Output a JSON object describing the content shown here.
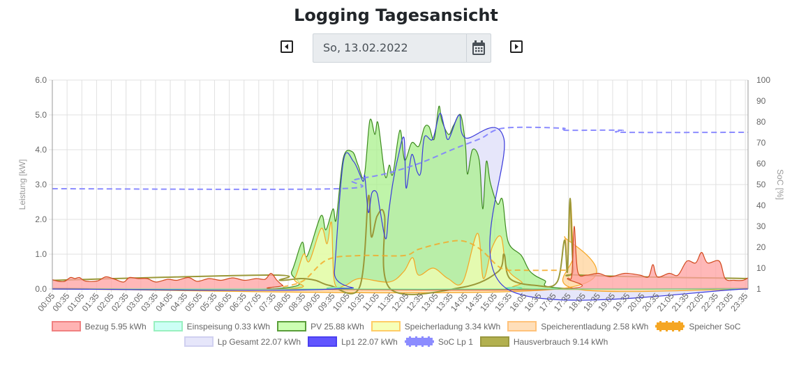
{
  "header": {
    "title": "Logging Tagesansicht",
    "date_value": "So, 13.02.2022"
  },
  "chart_data": {
    "type": "area",
    "ylabel_left": "Leistung [kW]",
    "ylabel_right": "SoC [%]",
    "ylim_left": [
      0,
      6
    ],
    "ylim_right": [
      0,
      100
    ],
    "left_ticks": [
      "0.0",
      "1.0",
      "2.0",
      "3.0",
      "4.0",
      "5.0",
      "6.0"
    ],
    "right_ticks": [
      "1",
      "10",
      "20",
      "30",
      "40",
      "50",
      "60",
      "70",
      "80",
      "90",
      "100"
    ],
    "x_ticks": [
      "00:05",
      "00:35",
      "01:05",
      "01:35",
      "02:05",
      "02:35",
      "03:05",
      "03:35",
      "04:05",
      "04:35",
      "05:05",
      "05:35",
      "06:05",
      "06:35",
      "07:05",
      "07:35",
      "08:05",
      "08:35",
      "09:05",
      "09:35",
      "10:05",
      "10:35",
      "11:05",
      "11:35",
      "12:05",
      "12:35",
      "13:05",
      "13:35",
      "14:05",
      "14:35",
      "15:05",
      "15:35",
      "16:05",
      "16:35",
      "17:05",
      "17:35",
      "18:05",
      "18:35",
      "19:05",
      "19:35",
      "20:05",
      "20:35",
      "21:05",
      "21:35",
      "22:05",
      "22:35",
      "23:05",
      "23:35"
    ],
    "x_unit": "hours",
    "grid": true,
    "legend_placement": "bottom",
    "series": [
      {
        "key": "lpgesamt",
        "name": "Lp Gesamt 22.07 kWh",
        "axis": "left",
        "fill": "#e6e6fa",
        "line": "#ccccee",
        "style": "area",
        "points": [
          [
            0.08,
            0
          ],
          [
            9.58,
            0
          ],
          [
            9.65,
            0.5
          ],
          [
            9.95,
            3.66
          ],
          [
            10.3,
            3.66
          ],
          [
            10.61,
            3.1
          ],
          [
            10.68,
            3.24
          ],
          [
            10.8,
            2.2
          ],
          [
            10.92,
            2.76
          ],
          [
            11.09,
            2.76
          ],
          [
            11.2,
            2.24
          ],
          [
            11.39,
            1.44
          ],
          [
            11.49,
            2.2
          ],
          [
            11.63,
            3.04
          ],
          [
            11.8,
            3.76
          ],
          [
            12.01,
            4.34
          ],
          [
            12.08,
            2.9
          ],
          [
            12.27,
            3.86
          ],
          [
            12.46,
            3.36
          ],
          [
            12.58,
            3.36
          ],
          [
            12.7,
            4.36
          ],
          [
            12.98,
            4.3
          ],
          [
            13.22,
            5.04
          ],
          [
            13.38,
            4.64
          ],
          [
            13.52,
            4.3
          ],
          [
            13.88,
            5.0
          ],
          [
            14.09,
            4.34
          ],
          [
            15.39,
            4.34
          ],
          [
            15.51,
            0
          ],
          [
            23.67,
            0
          ]
        ]
      },
      {
        "key": "pv",
        "name": "PV 25.88 kWh",
        "axis": "left",
        "fill": "rgba(170,240,140,0.75)",
        "line": "#3c8a1e",
        "style": "area",
        "points": [
          [
            0.08,
            0.02
          ],
          [
            7.77,
            0.02
          ],
          [
            8.2,
            0.5
          ],
          [
            8.55,
            1.34
          ],
          [
            8.72,
            0.94
          ],
          [
            9.19,
            2.1
          ],
          [
            9.36,
            1.7
          ],
          [
            9.6,
            2.3
          ],
          [
            9.71,
            2.0
          ],
          [
            9.95,
            3.76
          ],
          [
            10.26,
            3.94
          ],
          [
            10.45,
            3.56
          ],
          [
            10.66,
            3.24
          ],
          [
            10.85,
            4.84
          ],
          [
            11.02,
            4.44
          ],
          [
            11.13,
            4.76
          ],
          [
            11.37,
            3.24
          ],
          [
            11.51,
            3.56
          ],
          [
            11.63,
            3.3
          ],
          [
            11.87,
            4.56
          ],
          [
            12.03,
            3.7
          ],
          [
            12.27,
            4.2
          ],
          [
            12.51,
            4.1
          ],
          [
            12.7,
            4.64
          ],
          [
            12.86,
            4.66
          ],
          [
            13.03,
            4.3
          ],
          [
            13.19,
            5.24
          ],
          [
            13.29,
            4.84
          ],
          [
            13.52,
            4.44
          ],
          [
            13.69,
            4.7
          ],
          [
            13.93,
            5.0
          ],
          [
            14.09,
            4.16
          ],
          [
            14.16,
            3.3
          ],
          [
            14.33,
            4.0
          ],
          [
            14.56,
            3.7
          ],
          [
            14.68,
            2.3
          ],
          [
            14.8,
            3.66
          ],
          [
            14.94,
            3.04
          ],
          [
            15.18,
            2.44
          ],
          [
            15.35,
            2.56
          ],
          [
            15.54,
            1.36
          ],
          [
            15.99,
            0.96
          ],
          [
            16.29,
            0.5
          ],
          [
            16.77,
            0.25
          ],
          [
            17.48,
            0.02
          ],
          [
            23.67,
            0.02
          ]
        ]
      },
      {
        "key": "laden",
        "name": "Speicherladung 3.34 kWh",
        "axis": "left",
        "fill": "rgba(246,255,179,0.7)",
        "line": "#f5a623",
        "style": "area",
        "points": [
          [
            0.08,
            0
          ],
          [
            7.9,
            0
          ],
          [
            8.3,
            0.3
          ],
          [
            8.6,
            1.0
          ],
          [
            8.8,
            0.8
          ],
          [
            9.2,
            1.74
          ],
          [
            9.4,
            1.3
          ],
          [
            9.55,
            1.9
          ],
          [
            9.65,
            0.2
          ],
          [
            10,
            0.1
          ],
          [
            10.5,
            0.3
          ],
          [
            11.5,
            0.2
          ],
          [
            12,
            0.5
          ],
          [
            12.3,
            0.9
          ],
          [
            12.5,
            0.4
          ],
          [
            13,
            0.6
          ],
          [
            13.5,
            0.3
          ],
          [
            14,
            0.2
          ],
          [
            14.5,
            1.6
          ],
          [
            14.7,
            0.3
          ],
          [
            15,
            1.2
          ],
          [
            15.3,
            1.5
          ],
          [
            15.5,
            0.6
          ],
          [
            16,
            0.2
          ],
          [
            16.3,
            0
          ],
          [
            23.67,
            0
          ]
        ]
      },
      {
        "key": "entladen",
        "name": "Speicherentladung 2.58 kWh",
        "axis": "left",
        "fill": "rgba(255,214,160,0.8)",
        "line": "#f5a623",
        "style": "area",
        "points": [
          [
            0.08,
            0
          ],
          [
            17.2,
            0
          ],
          [
            17.45,
            1.5
          ],
          [
            17.55,
            0.5
          ],
          [
            17.65,
            2.55
          ],
          [
            17.75,
            1.0
          ],
          [
            17.85,
            0
          ],
          [
            23.67,
            0
          ]
        ]
      },
      {
        "key": "haus",
        "name": "Hausverbrauch 9.14 kWh",
        "axis": "left",
        "fill": "none",
        "line": "#9a9838",
        "style": "line",
        "points": [
          [
            0.08,
            0.25
          ],
          [
            7.5,
            0.4
          ],
          [
            7.8,
            0.25
          ],
          [
            8.5,
            0.3
          ],
          [
            9.0,
            0.25
          ],
          [
            9.5,
            0.1
          ],
          [
            10.5,
            0.05
          ],
          [
            10.8,
            2.66
          ],
          [
            10.9,
            1.5
          ],
          [
            11.1,
            2.1
          ],
          [
            11.35,
            2.1
          ],
          [
            11.55,
            0
          ],
          [
            14,
            0.05
          ],
          [
            15.2,
            0.5
          ],
          [
            15.4,
            1.0
          ],
          [
            15.6,
            0.3
          ],
          [
            16.5,
            0.1
          ],
          [
            17.2,
            0.2
          ],
          [
            17.45,
            1.4
          ],
          [
            17.55,
            0.5
          ],
          [
            17.64,
            2.6
          ],
          [
            17.75,
            0.6
          ],
          [
            18,
            0.4
          ],
          [
            23.67,
            0.3
          ]
        ]
      },
      {
        "key": "bezug",
        "name": "Bezug 5.95 kWh",
        "axis": "left",
        "fill": "rgba(255,160,160,0.75)",
        "line": "#d24a1e",
        "style": "area",
        "points": [
          [
            0.08,
            0.27
          ],
          [
            0.3,
            0.22
          ],
          [
            0.5,
            0.22
          ],
          [
            0.7,
            0.33
          ],
          [
            0.85,
            0.3
          ],
          [
            1.0,
            0.33
          ],
          [
            1.2,
            0.23
          ],
          [
            1.6,
            0.23
          ],
          [
            1.9,
            0.35
          ],
          [
            2.2,
            0.28
          ],
          [
            2.5,
            0.2
          ],
          [
            2.7,
            0.33
          ],
          [
            3.0,
            0.3
          ],
          [
            3.3,
            0.3
          ],
          [
            3.6,
            0.2
          ],
          [
            4.0,
            0.28
          ],
          [
            4.3,
            0.25
          ],
          [
            4.7,
            0.33
          ],
          [
            5.0,
            0.22
          ],
          [
            5.4,
            0.3
          ],
          [
            5.8,
            0.25
          ],
          [
            6.2,
            0.32
          ],
          [
            6.6,
            0.25
          ],
          [
            7.0,
            0.3
          ],
          [
            7.3,
            0.28
          ],
          [
            7.5,
            0.45
          ],
          [
            7.7,
            0.25
          ],
          [
            7.9,
            0.1
          ],
          [
            8.1,
            0
          ],
          [
            17.3,
            0
          ],
          [
            17.55,
            0.3
          ],
          [
            17.7,
            0.4
          ],
          [
            17.78,
            1.8
          ],
          [
            17.9,
            0.5
          ],
          [
            18.2,
            0.4
          ],
          [
            18.6,
            0.45
          ],
          [
            19.0,
            0.35
          ],
          [
            19.5,
            0.45
          ],
          [
            20.0,
            0.4
          ],
          [
            20.3,
            0.35
          ],
          [
            20.45,
            0.7
          ],
          [
            20.6,
            0.35
          ],
          [
            21.0,
            0.45
          ],
          [
            21.3,
            0.4
          ],
          [
            21.6,
            0.8
          ],
          [
            21.9,
            0.75
          ],
          [
            22.1,
            1.05
          ],
          [
            22.3,
            0.75
          ],
          [
            22.7,
            0.8
          ],
          [
            22.9,
            0.3
          ],
          [
            23.2,
            0.25
          ],
          [
            23.5,
            0.25
          ],
          [
            23.67,
            0.32
          ]
        ]
      },
      {
        "key": "einspeisung",
        "name": "Einspeisung 0.33 kWh",
        "axis": "left",
        "fill": "rgba(204,255,240,0.8)",
        "line": "#66e0a0",
        "style": "area",
        "points": [
          [
            0.08,
            0
          ],
          [
            9.4,
            0
          ],
          [
            9.6,
            0.05
          ],
          [
            9.9,
            0
          ],
          [
            15.5,
            0
          ],
          [
            15.8,
            0.06
          ],
          [
            16.1,
            0
          ],
          [
            23.67,
            0
          ]
        ]
      },
      {
        "key": "lp1",
        "name": "Lp1 22.07 kWh",
        "axis": "left",
        "fill": "none",
        "line": "#3b3bdc",
        "style": "line",
        "points": [
          [
            0.08,
            0
          ],
          [
            9.58,
            0
          ],
          [
            9.65,
            0.5
          ],
          [
            9.95,
            3.66
          ],
          [
            10.3,
            3.66
          ],
          [
            10.61,
            3.1
          ],
          [
            10.68,
            3.24
          ],
          [
            10.8,
            2.2
          ],
          [
            10.92,
            2.76
          ],
          [
            11.09,
            2.76
          ],
          [
            11.2,
            2.24
          ],
          [
            11.39,
            1.44
          ],
          [
            11.49,
            2.2
          ],
          [
            11.63,
            3.04
          ],
          [
            11.8,
            3.76
          ],
          [
            12.01,
            4.34
          ],
          [
            12.08,
            2.9
          ],
          [
            12.27,
            3.86
          ],
          [
            12.46,
            3.36
          ],
          [
            12.58,
            3.36
          ],
          [
            12.7,
            4.36
          ],
          [
            12.98,
            4.3
          ],
          [
            13.22,
            5.04
          ],
          [
            13.38,
            4.64
          ],
          [
            13.52,
            4.3
          ],
          [
            13.88,
            5.0
          ],
          [
            14.09,
            4.34
          ],
          [
            15.39,
            4.34
          ],
          [
            15.51,
            0
          ],
          [
            23.67,
            0
          ]
        ]
      },
      {
        "key": "speichersoc",
        "name": "Speicher SoC",
        "axis": "right",
        "fill": "none",
        "line": "#f5a623",
        "style": "dashed",
        "points": [
          [
            7.9,
            1
          ],
          [
            8.6,
            4
          ],
          [
            9.4,
            14
          ],
          [
            10.5,
            16
          ],
          [
            12.0,
            16
          ],
          [
            12.5,
            19
          ],
          [
            13.3,
            22
          ],
          [
            14.0,
            23
          ],
          [
            14.6,
            19
          ],
          [
            15.3,
            10
          ],
          [
            16.0,
            9
          ],
          [
            17.5,
            9
          ]
        ]
      },
      {
        "key": "soclp1",
        "name": "SoC Lp 1",
        "axis": "right",
        "fill": "none",
        "line": "#8080ff",
        "style": "dashed",
        "points": [
          [
            0.08,
            48
          ],
          [
            9.78,
            48
          ],
          [
            10.26,
            52
          ],
          [
            11.33,
            55
          ],
          [
            12.5,
            60
          ],
          [
            13.69,
            67
          ],
          [
            14.6,
            72
          ],
          [
            15.39,
            77
          ],
          [
            17.36,
            77
          ],
          [
            17.45,
            76
          ],
          [
            19.37,
            76
          ],
          [
            19.45,
            75
          ],
          [
            23.67,
            75
          ]
        ]
      }
    ]
  },
  "legend": {
    "row1": [
      {
        "label": "Bezug 5.95 kWh",
        "fill": "#ffb3b3",
        "border": "#f08080",
        "dashed": false
      },
      {
        "label": "Einspeisung 0.33 kWh",
        "fill": "#ccfff5",
        "border": "#99f0c0",
        "dashed": false
      },
      {
        "label": "PV 25.88 kWh",
        "fill": "#ccffb3",
        "border": "#5a9e3a",
        "dashed": false
      },
      {
        "label": "Speicherladung 3.34 kWh",
        "fill": "#f6ffb8",
        "border": "#ffcc66",
        "dashed": false
      },
      {
        "label": "Speicherentladung 2.58 kWh",
        "fill": "#ffdfba",
        "border": "#ffc27a",
        "dashed": false
      },
      {
        "label": "Speicher SoC",
        "fill": "#f5a623",
        "border": "#f5a623",
        "dashed": true
      }
    ],
    "row2": [
      {
        "label": "Lp Gesamt 22.07 kWh",
        "fill": "#e6e6fa",
        "border": "#d0d0f0",
        "dashed": false
      },
      {
        "label": "Lp1 22.07 kWh",
        "fill": "#6155ff",
        "border": "#4a40f0",
        "dashed": false
      },
      {
        "label": "SoC Lp 1",
        "fill": "#8c8cff",
        "border": "#6a6aff",
        "dashed": true
      },
      {
        "label": "Hausverbrauch 9.14 kWh",
        "fill": "#b2b04f",
        "border": "#9a9840",
        "dashed": false
      }
    ]
  }
}
